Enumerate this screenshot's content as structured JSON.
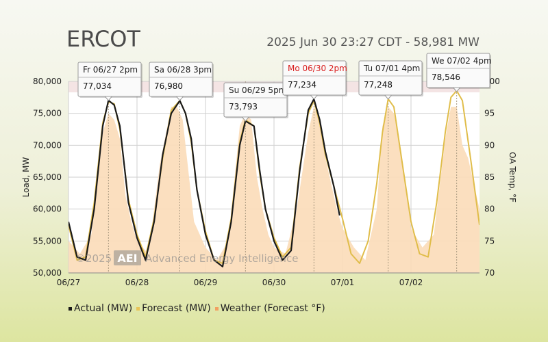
{
  "header": {
    "title": "ERCOT",
    "subtitle": "2025 Jun 30 23:27 CDT - 58,981 MW"
  },
  "watermark": {
    "year": "©2025",
    "logo": "AEI",
    "text": "Advanced Energy Intelligence"
  },
  "legend": [
    {
      "label": "Actual (MW)",
      "color": "#1a1a1a"
    },
    {
      "label": "Forecast (MW)",
      "color": "#e8c457"
    },
    {
      "label": "Weather (Forecast °F)",
      "color": "#f2a060"
    }
  ],
  "chart_data": {
    "type": "line",
    "xlabel": "",
    "ylabel": "Load, MW",
    "y2label": "OA Temp, °F",
    "ylim": [
      50000,
      80000
    ],
    "y2lim": [
      70,
      100
    ],
    "yticks": [
      "50,000",
      "55,000",
      "60,000",
      "65,000",
      "70,000",
      "75,000",
      "80,000"
    ],
    "y2ticks": [
      "70",
      "75",
      "80",
      "85",
      "90",
      "95",
      "100"
    ],
    "xticks": [
      "06/27",
      "06/28",
      "06/29",
      "06/30",
      "07/01",
      "07/02"
    ],
    "grid": true,
    "legend_position": "bottom",
    "peaks": [
      {
        "day": "Fr 06/27 2pm",
        "value": "77,034",
        "highlight": false
      },
      {
        "day": "Sa 06/28 3pm",
        "value": "76,980",
        "highlight": false
      },
      {
        "day": "Su 06/29 5pm",
        "value": "73,793",
        "highlight": false
      },
      {
        "day": "Mo 06/30 2pm",
        "value": "77,234",
        "highlight": true
      },
      {
        "day": "Tu 07/01 4pm",
        "value": "77,248",
        "highlight": false
      },
      {
        "day": "We 07/02 4pm",
        "value": "78,546",
        "highlight": false
      }
    ],
    "series": [
      {
        "name": "Actual (MW)",
        "hours": [
          0,
          3,
          6,
          9,
          12,
          14,
          16,
          18,
          21,
          24,
          27,
          30,
          33,
          36,
          39,
          41,
          43,
          45,
          48,
          51,
          54,
          57,
          60,
          62,
          65,
          67,
          69,
          72,
          75,
          78,
          81,
          84,
          86,
          88,
          90,
          93,
          95
        ],
        "values": [
          58000,
          52500,
          52000,
          60000,
          73000,
          77034,
          76300,
          73000,
          61000,
          55500,
          52000,
          58000,
          68500,
          75000,
          76980,
          75000,
          71000,
          63000,
          56000,
          52000,
          51000,
          58000,
          70000,
          73793,
          73000,
          66000,
          60000,
          55000,
          52000,
          53500,
          66000,
          75500,
          77234,
          74000,
          69000,
          63500,
          59000
        ]
      },
      {
        "name": "Forecast (MW)",
        "hours": [
          0,
          3,
          6,
          9,
          12,
          14,
          16,
          18,
          21,
          24,
          27,
          30,
          33,
          36,
          39,
          41,
          43,
          45,
          48,
          51,
          54,
          57,
          60,
          62,
          65,
          67,
          69,
          72,
          75,
          78,
          81,
          84,
          86,
          88,
          90,
          93,
          96,
          99,
          102,
          105,
          108,
          110,
          112,
          114,
          117,
          120,
          123,
          126,
          129,
          132,
          134,
          136,
          138,
          141,
          144
        ],
        "values": [
          57500,
          52000,
          52500,
          61000,
          73500,
          76800,
          76500,
          72500,
          61500,
          56000,
          52500,
          58500,
          68000,
          75500,
          77000,
          75000,
          70500,
          63000,
          56500,
          52000,
          51500,
          58500,
          70500,
          74000,
          73000,
          65500,
          60000,
          55500,
          52500,
          54000,
          66500,
          75000,
          77000,
          73500,
          68500,
          63500,
          58500,
          53000,
          51500,
          55000,
          64000,
          72000,
          77248,
          76000,
          67000,
          58000,
          53000,
          52500,
          61000,
          72000,
          77500,
          78546,
          77000,
          67500,
          57500
        ]
      }
    ],
    "weather": {
      "name": "Weather (Forecast °F)",
      "hours": [
        0,
        4,
        8,
        12,
        14,
        16,
        18,
        20,
        22,
        24,
        28,
        32,
        36,
        38,
        40,
        42,
        44,
        46,
        48,
        52,
        56,
        60,
        62,
        64,
        66,
        68,
        70,
        72,
        76,
        80,
        84,
        86,
        88,
        90,
        92,
        94,
        96,
        100,
        104,
        108,
        110,
        112,
        114,
        116,
        118,
        120,
        124,
        128,
        132,
        134,
        136,
        138,
        140,
        142,
        144
      ],
      "values": [
        75,
        73,
        76,
        92,
        95,
        94,
        91,
        82,
        78,
        75,
        73,
        87,
        96,
        96,
        94,
        86,
        78,
        76,
        74,
        72,
        75,
        93,
        95,
        94,
        85,
        80,
        76,
        74,
        73,
        80,
        92,
        96,
        94,
        88,
        84,
        80,
        77,
        74,
        72,
        80,
        93,
        96,
        95,
        90,
        84,
        77,
        74,
        76,
        91,
        96,
        96,
        90,
        88,
        84,
        80
      ]
    }
  }
}
